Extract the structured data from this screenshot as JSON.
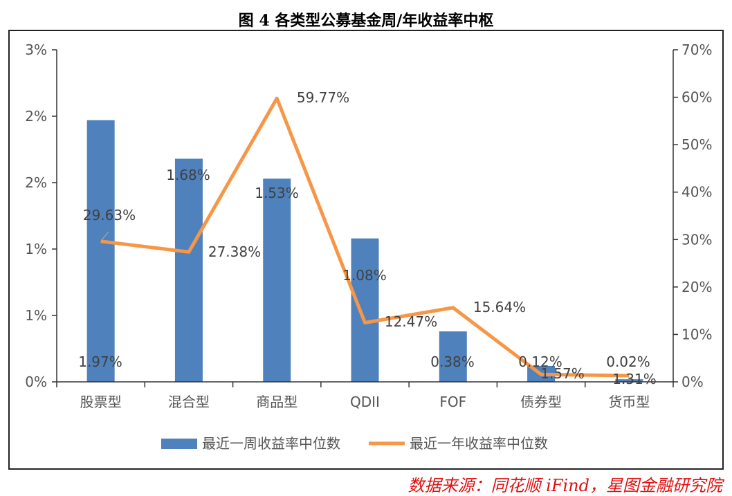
{
  "title": "图 4 各类型公募基金周/年收益率中枢",
  "source": "数据来源：同花顺 iFind，星图金融研究院",
  "chart_data": {
    "type": "bar+line",
    "categories": [
      "股票型",
      "混合型",
      "商品型",
      "QDII",
      "FOF",
      "债券型",
      "货币型"
    ],
    "series": [
      {
        "name": "最近一周收益率中位数",
        "type": "bar",
        "axis": "left",
        "color": "#4f81bd",
        "values": [
          1.97,
          1.68,
          1.53,
          1.08,
          0.38,
          0.12,
          0.02
        ],
        "labels": [
          "1.97%",
          "1.68%",
          "1.53%",
          "1.08%",
          "0.38%",
          "0.12%",
          "0.02%"
        ]
      },
      {
        "name": "最近一年收益率中位数",
        "type": "line",
        "axis": "right",
        "color": "#f79646",
        "values": [
          29.63,
          27.38,
          59.77,
          12.47,
          15.64,
          1.57,
          1.31
        ],
        "labels": [
          "29.63%",
          "27.38%",
          "59.77%",
          "12.47%",
          "15.64%",
          "1.57%",
          "1.31%"
        ]
      }
    ],
    "y_left": {
      "range": [
        0,
        2.5
      ],
      "ticks": [
        0,
        0.5,
        1,
        1.5,
        2,
        2.5
      ],
      "tick_labels": [
        "0%",
        "1%",
        "1%",
        "2%",
        "2%",
        "3%"
      ]
    },
    "y_right": {
      "range": [
        0,
        70
      ],
      "ticks": [
        0,
        10,
        20,
        30,
        40,
        50,
        60,
        70
      ],
      "tick_labels": [
        "0%",
        "10%",
        "20%",
        "30%",
        "40%",
        "50%",
        "60%",
        "70%"
      ]
    },
    "legend": "bottom",
    "grid": false
  }
}
